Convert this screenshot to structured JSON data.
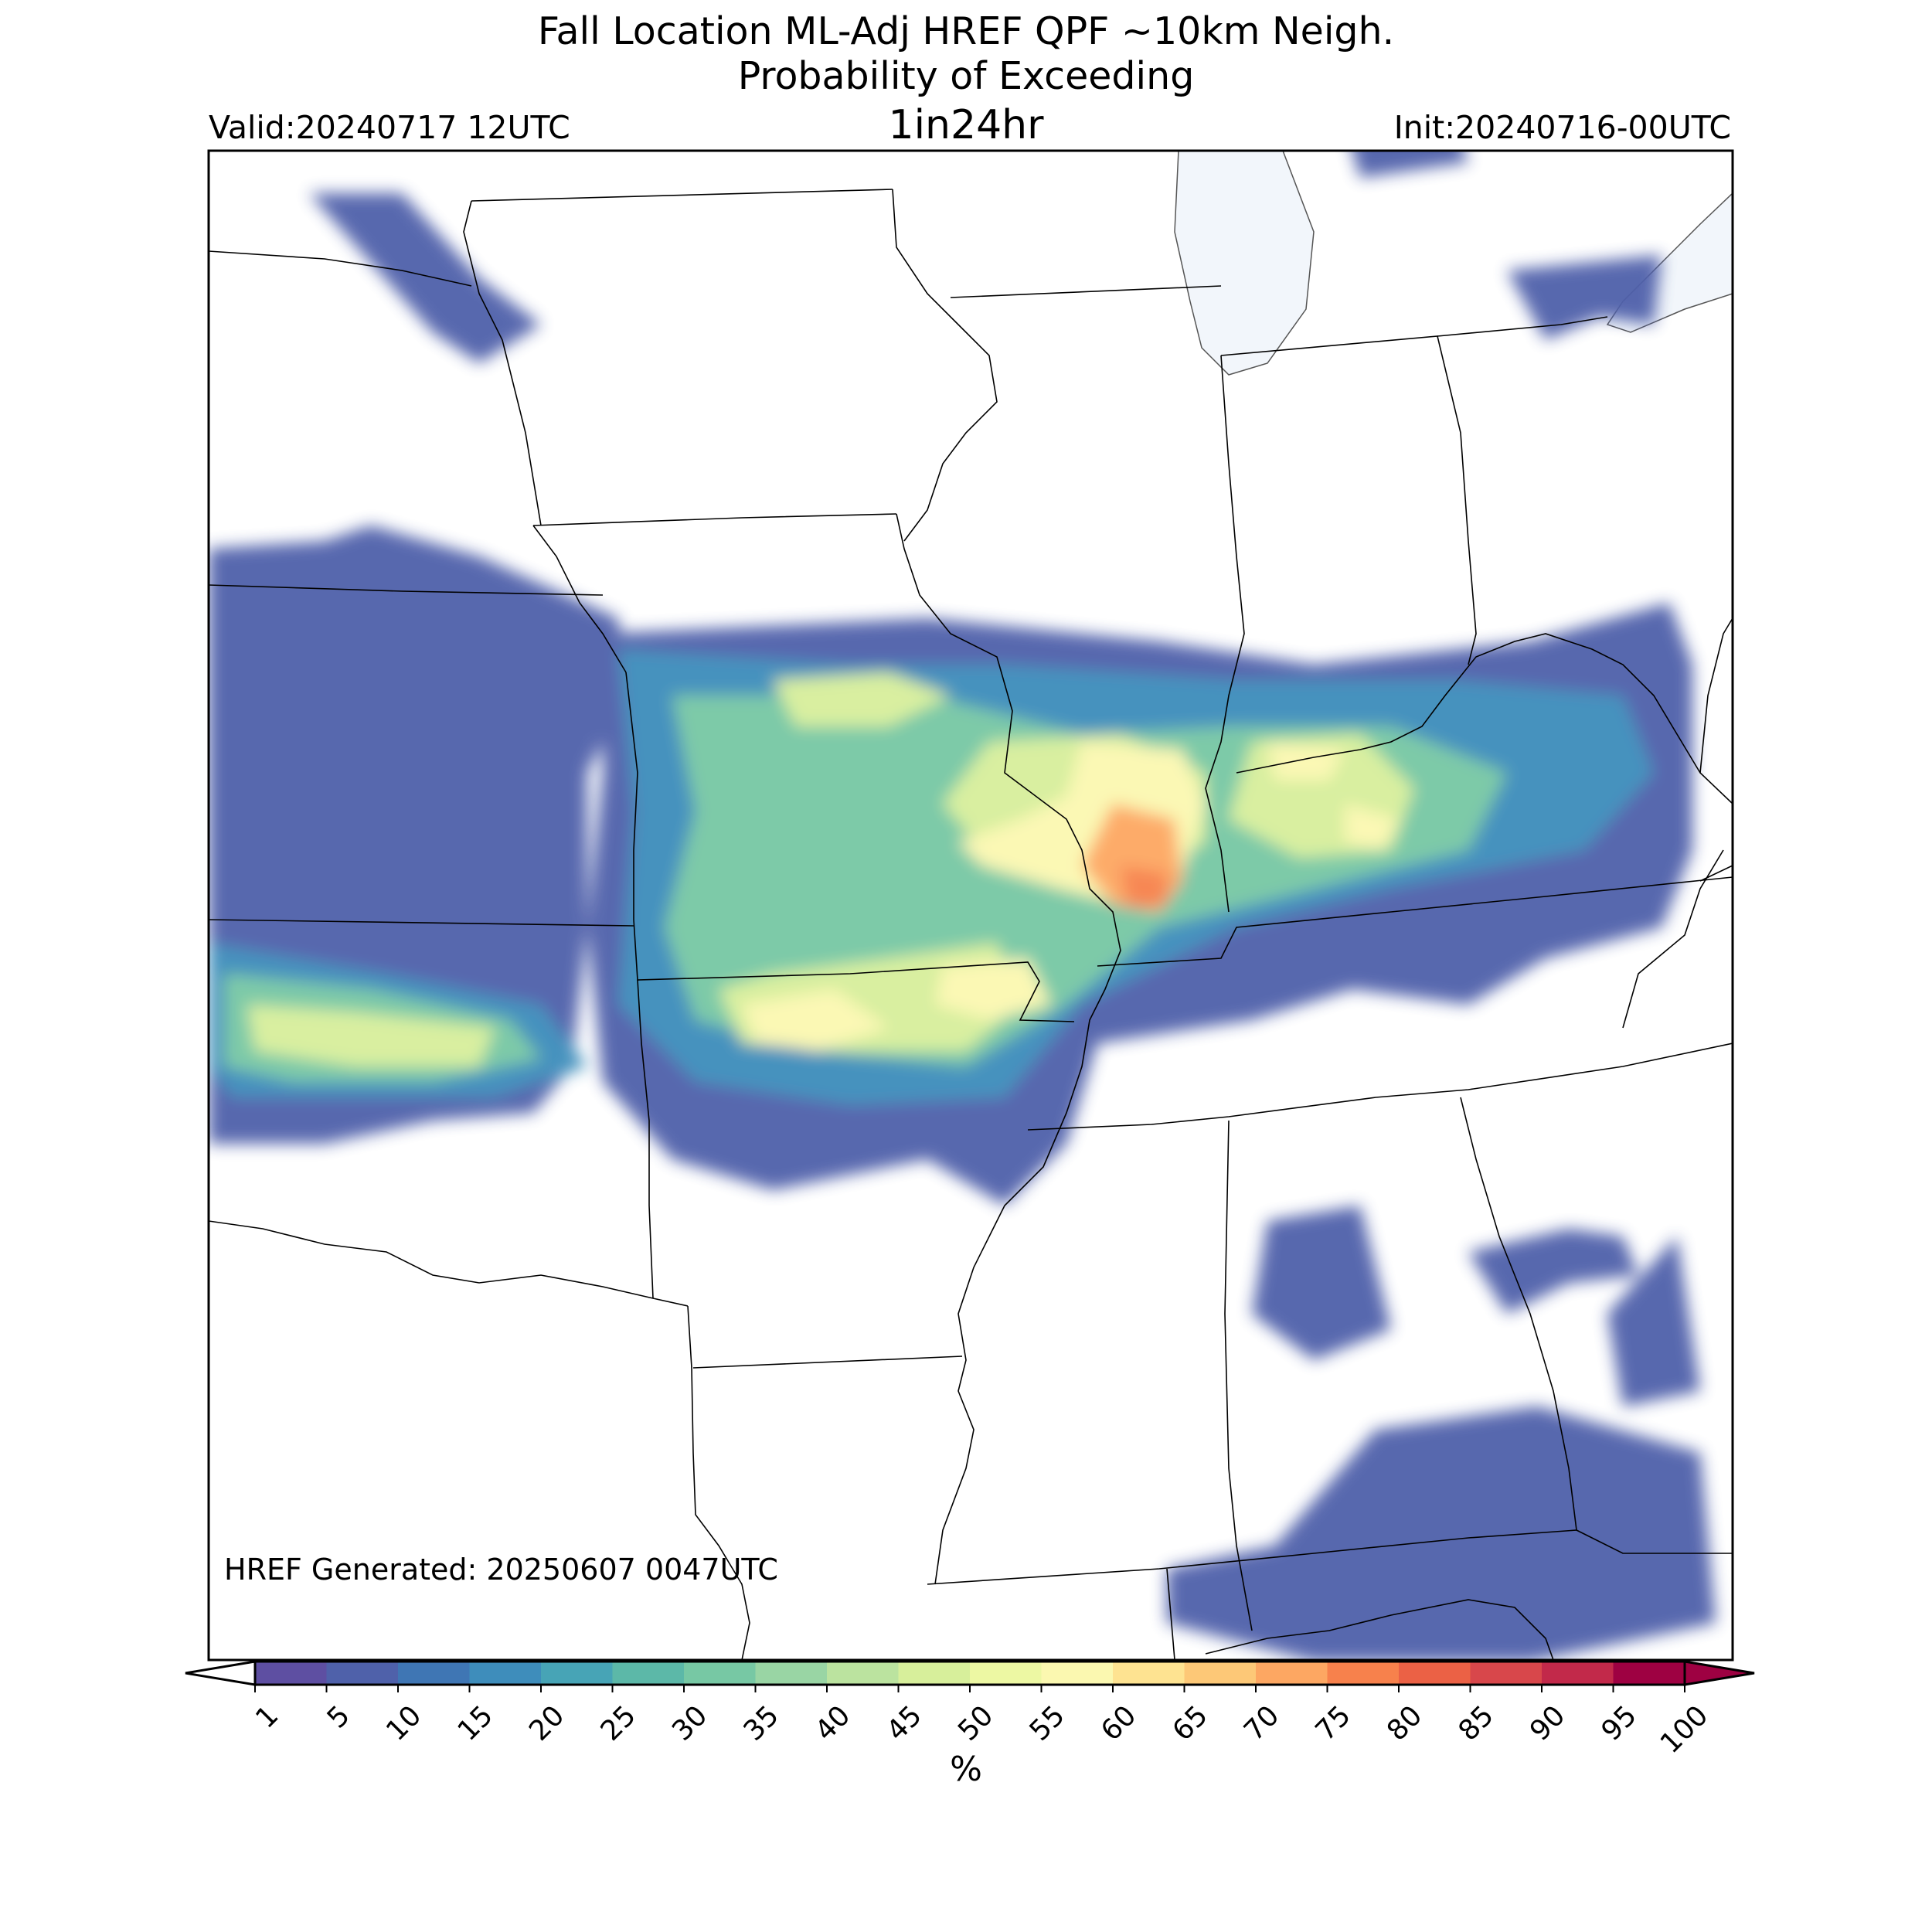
{
  "titles": {
    "line1": "Fall Location ML-Adj HREF QPF ~10km Neigh.",
    "line2": "Probability of Exceeding",
    "line3": "1in24hr"
  },
  "valid": "Valid:20240717 12UTC",
  "init": "Init:20240716-00UTC",
  "generated": "HREF Generated: 20250607 0047UTC",
  "colorbar": {
    "units": "%",
    "levels": [
      "1",
      "5",
      "10",
      "15",
      "20",
      "25",
      "30",
      "35",
      "40",
      "45",
      "50",
      "55",
      "60",
      "65",
      "70",
      "75",
      "80",
      "85",
      "90",
      "95",
      "100"
    ],
    "colors": [
      "#5e4fa2",
      "#4f61aa",
      "#3f76b4",
      "#3e8dbb",
      "#47a4b6",
      "#5cb8a8",
      "#77c8a4",
      "#99d5a4",
      "#bbe39f",
      "#d7ef9b",
      "#edf8a3",
      "#fbf8b0",
      "#fee391",
      "#fdc877",
      "#fda762",
      "#f7814c",
      "#eb6145",
      "#d8474b",
      "#c2294a",
      "#9e0142"
    ]
  },
  "map": {
    "lake_color": "#f2f6fb",
    "blobs": [
      {
        "level": 1,
        "points": [
          [
            270,
            710
          ],
          [
            420,
            700
          ],
          [
            480,
            680
          ],
          [
            620,
            720
          ],
          [
            800,
            800
          ],
          [
            810,
            900
          ],
          [
            760,
            1000
          ],
          [
            760,
            1200
          ],
          [
            740,
            1380
          ],
          [
            690,
            1440
          ],
          [
            560,
            1450
          ],
          [
            420,
            1480
          ],
          [
            270,
            1480
          ]
        ]
      },
      {
        "level": 1,
        "points": [
          [
            780,
            820
          ],
          [
            1200,
            800
          ],
          [
            1500,
            830
          ],
          [
            1700,
            860
          ],
          [
            1980,
            830
          ],
          [
            2160,
            780
          ],
          [
            2190,
            860
          ],
          [
            2190,
            1100
          ],
          [
            2150,
            1200
          ],
          [
            2000,
            1240
          ],
          [
            1900,
            1300
          ],
          [
            1750,
            1280
          ],
          [
            1620,
            1320
          ],
          [
            1420,
            1350
          ],
          [
            1380,
            1480
          ],
          [
            1300,
            1560
          ],
          [
            1200,
            1500
          ],
          [
            1000,
            1540
          ],
          [
            870,
            1500
          ],
          [
            780,
            1400
          ],
          [
            760,
            1200
          ],
          [
            780,
            1000
          ]
        ]
      },
      {
        "level": 1,
        "points": [
          [
            400,
            250
          ],
          [
            520,
            250
          ],
          [
            620,
            360
          ],
          [
            700,
            420
          ],
          [
            620,
            470
          ],
          [
            560,
            430
          ]
        ]
      },
      {
        "level": 1,
        "points": [
          [
            1950,
            350
          ],
          [
            2150,
            330
          ],
          [
            2140,
            420
          ],
          [
            2070,
            410
          ],
          [
            2000,
            440
          ]
        ]
      },
      {
        "level": 1,
        "points": [
          [
            1900,
            1620
          ],
          [
            2030,
            1590
          ],
          [
            2100,
            1600
          ],
          [
            2120,
            1650
          ],
          [
            2030,
            1660
          ],
          [
            1950,
            1700
          ]
        ]
      },
      {
        "level": 1,
        "points": [
          [
            1780,
            1850
          ],
          [
            1990,
            1820
          ],
          [
            2200,
            1880
          ],
          [
            2220,
            2100
          ],
          [
            1980,
            2150
          ],
          [
            1700,
            2150
          ],
          [
            1510,
            2100
          ],
          [
            1510,
            2030
          ],
          [
            1650,
            2000
          ]
        ]
      },
      {
        "level": 1,
        "points": [
          [
            2080,
            1700
          ],
          [
            2170,
            1600
          ],
          [
            2200,
            1800
          ],
          [
            2100,
            1820
          ]
        ]
      },
      {
        "level": 1,
        "points": [
          [
            1740,
            160
          ],
          [
            1880,
            150
          ],
          [
            1900,
            210
          ],
          [
            1760,
            230
          ]
        ]
      },
      {
        "level": 1,
        "points": [
          [
            1640,
            1580
          ],
          [
            1760,
            1560
          ],
          [
            1800,
            1720
          ],
          [
            1700,
            1760
          ],
          [
            1620,
            1700
          ]
        ]
      },
      {
        "level": 3,
        "points": [
          [
            270,
            1220
          ],
          [
            500,
            1260
          ],
          [
            700,
            1300
          ],
          [
            760,
            1380
          ],
          [
            640,
            1420
          ],
          [
            480,
            1420
          ],
          [
            300,
            1420
          ],
          [
            270,
            1380
          ]
        ]
      },
      {
        "level": 3,
        "points": [
          [
            800,
            840
          ],
          [
            1100,
            860
          ],
          [
            1300,
            860
          ],
          [
            1600,
            880
          ],
          [
            1880,
            880
          ],
          [
            2100,
            900
          ],
          [
            2140,
            1000
          ],
          [
            2050,
            1100
          ],
          [
            1800,
            1150
          ],
          [
            1600,
            1200
          ],
          [
            1400,
            1300
          ],
          [
            1300,
            1420
          ],
          [
            1100,
            1430
          ],
          [
            900,
            1400
          ],
          [
            800,
            1300
          ],
          [
            820,
            1050
          ]
        ]
      },
      {
        "level": 6,
        "points": [
          [
            290,
            1260
          ],
          [
            480,
            1280
          ],
          [
            660,
            1320
          ],
          [
            700,
            1370
          ],
          [
            560,
            1400
          ],
          [
            380,
            1400
          ],
          [
            290,
            1380
          ]
        ]
      },
      {
        "level": 6,
        "points": [
          [
            870,
            900
          ],
          [
            1200,
            900
          ],
          [
            1400,
            950
          ],
          [
            1600,
            940
          ],
          [
            1800,
            940
          ],
          [
            1950,
            1000
          ],
          [
            1900,
            1100
          ],
          [
            1700,
            1150
          ],
          [
            1500,
            1200
          ],
          [
            1380,
            1300
          ],
          [
            1250,
            1380
          ],
          [
            1050,
            1360
          ],
          [
            900,
            1320
          ],
          [
            860,
            1200
          ],
          [
            900,
            1050
          ]
        ]
      },
      {
        "level": 9,
        "points": [
          [
            320,
            1300
          ],
          [
            460,
            1310
          ],
          [
            640,
            1330
          ],
          [
            620,
            1380
          ],
          [
            460,
            1380
          ],
          [
            330,
            1360
          ]
        ]
      },
      {
        "level": 9,
        "points": [
          [
            930,
            1280
          ],
          [
            1000,
            1260
          ],
          [
            1150,
            1240
          ],
          [
            1290,
            1220
          ],
          [
            1320,
            1300
          ],
          [
            1250,
            1360
          ],
          [
            1100,
            1360
          ],
          [
            960,
            1350
          ]
        ]
      },
      {
        "level": 9,
        "points": [
          [
            1000,
            880
          ],
          [
            1150,
            870
          ],
          [
            1230,
            900
          ],
          [
            1150,
            940
          ],
          [
            1030,
            940
          ]
        ]
      },
      {
        "level": 9,
        "points": [
          [
            1280,
            960
          ],
          [
            1450,
            950
          ],
          [
            1560,
            1000
          ],
          [
            1560,
            1090
          ],
          [
            1450,
            1150
          ],
          [
            1280,
            1110
          ],
          [
            1220,
            1040
          ]
        ]
      },
      {
        "level": 9,
        "points": [
          [
            1620,
            960
          ],
          [
            1760,
            950
          ],
          [
            1830,
            1020
          ],
          [
            1800,
            1100
          ],
          [
            1680,
            1110
          ],
          [
            1590,
            1060
          ]
        ]
      },
      {
        "level": 11,
        "points": [
          [
            960,
            1300
          ],
          [
            1080,
            1280
          ],
          [
            1150,
            1330
          ],
          [
            1060,
            1360
          ],
          [
            980,
            1350
          ]
        ]
      },
      {
        "level": 11,
        "points": [
          [
            1220,
            1250
          ],
          [
            1330,
            1240
          ],
          [
            1360,
            1300
          ],
          [
            1280,
            1320
          ],
          [
            1210,
            1300
          ]
        ]
      },
      {
        "level": 11,
        "points": [
          [
            1400,
            960
          ],
          [
            1530,
            970
          ],
          [
            1560,
            1040
          ],
          [
            1530,
            1130
          ],
          [
            1450,
            1170
          ],
          [
            1370,
            1150
          ],
          [
            1270,
            1120
          ],
          [
            1240,
            1090
          ],
          [
            1320,
            1060
          ],
          [
            1380,
            1030
          ]
        ]
      },
      {
        "level": 11,
        "points": [
          [
            1640,
            960
          ],
          [
            1740,
            970
          ],
          [
            1720,
            1010
          ],
          [
            1650,
            1010
          ]
        ]
      },
      {
        "level": 11,
        "points": [
          [
            1740,
            1040
          ],
          [
            1810,
            1060
          ],
          [
            1790,
            1100
          ],
          [
            1740,
            1090
          ]
        ]
      },
      {
        "level": 14,
        "points": [
          [
            1440,
            1040
          ],
          [
            1520,
            1060
          ],
          [
            1530,
            1140
          ],
          [
            1500,
            1180
          ],
          [
            1440,
            1170
          ],
          [
            1400,
            1120
          ]
        ]
      },
      {
        "level": 15,
        "points": [
          [
            1450,
            1120
          ],
          [
            1510,
            1130
          ],
          [
            1510,
            1170
          ],
          [
            1460,
            1175
          ]
        ]
      }
    ]
  }
}
